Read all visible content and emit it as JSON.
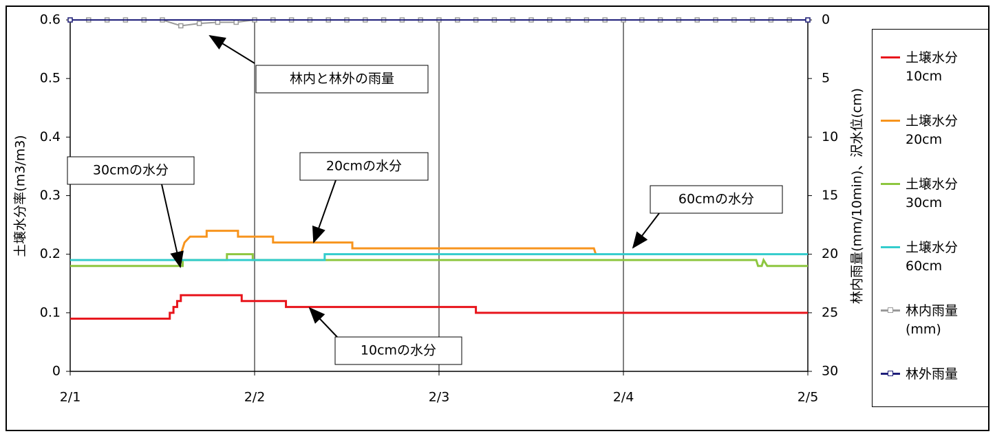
{
  "chart_data": {
    "type": "line",
    "y_label": "土壌水分率(m3/m3)",
    "y2_label": "林内雨量(mm/10min)、沢水位(cm)",
    "xlim": [
      0,
      4
    ],
    "xticks": [
      {
        "value": 0,
        "label": "2/1"
      },
      {
        "value": 1,
        "label": "2/2"
      },
      {
        "value": 2,
        "label": "2/3"
      },
      {
        "value": 3,
        "label": "2/4"
      },
      {
        "value": 4,
        "label": "2/5"
      }
    ],
    "ylim": [
      0,
      0.6
    ],
    "yticks": [
      0,
      0.1,
      0.2,
      0.3,
      0.4,
      0.5,
      0.6
    ],
    "y2lim": [
      30,
      0
    ],
    "y2ticks": [
      0,
      5,
      10,
      15,
      20,
      25,
      30
    ],
    "grid": true,
    "legend": "right",
    "series": [
      {
        "name": "土壌水分 10cm",
        "color": "#e8141b",
        "x": [
          0,
          0.54,
          0.54,
          0.56,
          0.56,
          0.58,
          0.58,
          0.6,
          0.6,
          0.93,
          0.93,
          1.17,
          1.17,
          2.2,
          2.2,
          4
        ],
        "values": [
          0.09,
          0.09,
          0.1,
          0.1,
          0.11,
          0.11,
          0.12,
          0.12,
          0.13,
          0.13,
          0.12,
          0.12,
          0.11,
          0.11,
          0.1,
          0.1
        ]
      },
      {
        "name": "土壌水分 20cm",
        "color": "#f7941d",
        "x": [
          0.58,
          0.6,
          0.62,
          0.65,
          0.74,
          0.74,
          0.91,
          0.91,
          1.1,
          1.1,
          1.53,
          1.53,
          2.84,
          2.85
        ],
        "values": [
          0.19,
          0.2,
          0.22,
          0.23,
          0.23,
          0.24,
          0.24,
          0.23,
          0.23,
          0.22,
          0.22,
          0.21,
          0.21,
          0.2
        ]
      },
      {
        "name": "土壌水分 30cm",
        "color": "#8dc63f",
        "x": [
          0,
          0.61,
          0.61,
          0.85,
          0.85,
          0.99,
          0.99,
          3.72,
          3.73,
          3.75,
          3.76,
          3.78,
          4
        ],
        "values": [
          0.18,
          0.18,
          0.19,
          0.19,
          0.2,
          0.2,
          0.19,
          0.19,
          0.18,
          0.18,
          0.19,
          0.18,
          0.18
        ]
      },
      {
        "name": "土壌水分 60cm",
        "color": "#33cccc",
        "x": [
          0,
          1.38,
          1.38,
          4
        ],
        "values": [
          0.19,
          0.19,
          0.2,
          0.2
        ]
      },
      {
        "name": "林内雨量 (mm)",
        "color": "#999999",
        "axis": "y2",
        "markers": true,
        "x": [
          0,
          0.1,
          0.2,
          0.3,
          0.4,
          0.5,
          0.6,
          0.7,
          0.8,
          0.9,
          1,
          1.1,
          1.2,
          1.3,
          1.4,
          1.5,
          1.6,
          1.7,
          1.8,
          1.9,
          2,
          2.1,
          2.2,
          2.3,
          2.4,
          2.5,
          2.6,
          2.7,
          2.8,
          2.9,
          3,
          3.1,
          3.2,
          3.3,
          3.4,
          3.5,
          3.6,
          3.7,
          3.8,
          3.9,
          4
        ],
        "values": [
          0,
          0,
          0,
          0,
          0,
          0,
          0.5,
          0.3,
          0.2,
          0.2,
          0,
          0,
          0,
          0,
          0,
          0,
          0,
          0,
          0,
          0,
          0,
          0,
          0,
          0,
          0,
          0,
          0,
          0,
          0,
          0,
          0,
          0,
          0,
          0,
          0,
          0,
          0,
          0,
          0,
          0,
          0
        ]
      },
      {
        "name": "林外雨量",
        "color": "#1f1f7a",
        "axis": "y2",
        "markers": true,
        "x": [
          0,
          4
        ],
        "values": [
          0,
          0
        ]
      }
    ],
    "annotations": [
      "林内と林外の雨量",
      "30cmの水分",
      "20cmの水分",
      "60cmの水分",
      "10cmの水分"
    ]
  }
}
